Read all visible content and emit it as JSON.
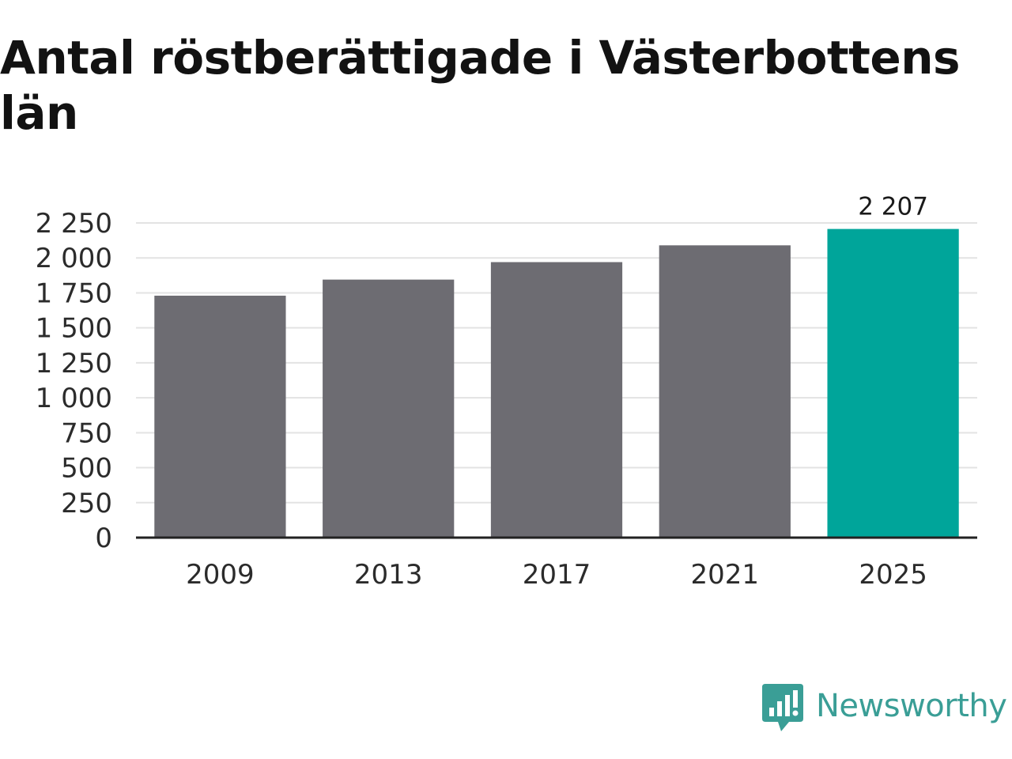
{
  "title": "Antal röstberättigade i Västerbottens län",
  "brand": {
    "name": "Newsworthy",
    "icon": "bar-chart-speech-bubble-icon",
    "color": "#3a9e96"
  },
  "colors": {
    "bar_default": "#6d6c72",
    "bar_highlight": "#00a59a",
    "grid": "#e3e3e3",
    "baseline": "#222222"
  },
  "chart_data": {
    "type": "bar",
    "categories": [
      "2009",
      "2013",
      "2017",
      "2021",
      "2025"
    ],
    "values": [
      1730,
      1845,
      1970,
      2090,
      2207
    ],
    "highlight_index": 4,
    "data_labels": [
      null,
      null,
      null,
      null,
      "2 207"
    ],
    "ylim": [
      0,
      2250
    ],
    "yticks": [
      0,
      250,
      500,
      750,
      1000,
      1250,
      1500,
      1750,
      2000,
      2250
    ],
    "ytick_labels": [
      "0",
      "250",
      "500",
      "750",
      "1 000",
      "1 250",
      "1 500",
      "1 750",
      "2 000",
      "2 250"
    ],
    "grid": true,
    "legend": "none"
  }
}
